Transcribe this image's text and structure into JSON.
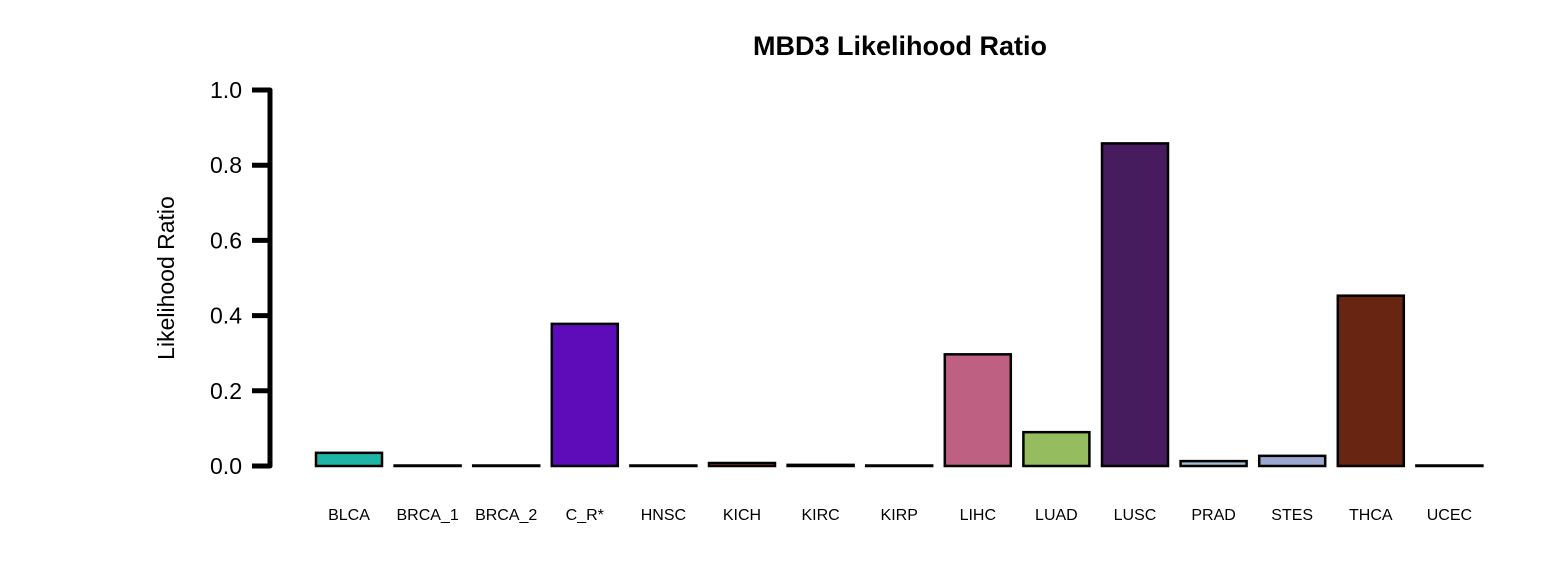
{
  "chart_data": {
    "type": "bar",
    "title": "MBD3 Likelihood Ratio",
    "xlabel": "",
    "ylabel": "Likelihood Ratio",
    "ylim": [
      0,
      1.0
    ],
    "yticks": [
      "0.0",
      "0.2",
      "0.4",
      "0.6",
      "0.8",
      "1.0"
    ],
    "grid": false,
    "legend": "none",
    "categories": [
      "BLCA",
      "BRCA_1",
      "BRCA_2",
      "C_R*",
      "HNSC",
      "KICH",
      "KIRC",
      "KIRP",
      "LIHC",
      "LUAD",
      "LUSC",
      "PRAD",
      "STES",
      "THCA",
      "UCEC"
    ],
    "values": [
      0.035,
      0.001,
      0.001,
      0.378,
      0.001,
      0.008,
      0.003,
      0.001,
      0.297,
      0.09,
      0.858,
      0.013,
      0.027,
      0.453,
      0.001
    ],
    "colors": [
      "#1fb5a6",
      "#2c2cb2",
      "#3c8cc8",
      "#5e0bb9",
      "#2aa06a",
      "#c04040",
      "#bc3a2a",
      "#c9a044",
      "#bd6081",
      "#96bc60",
      "#461c5e",
      "#a4bcd4",
      "#9ca8d0",
      "#672512",
      "#7a7a7a"
    ],
    "edge_color": "#000000"
  }
}
